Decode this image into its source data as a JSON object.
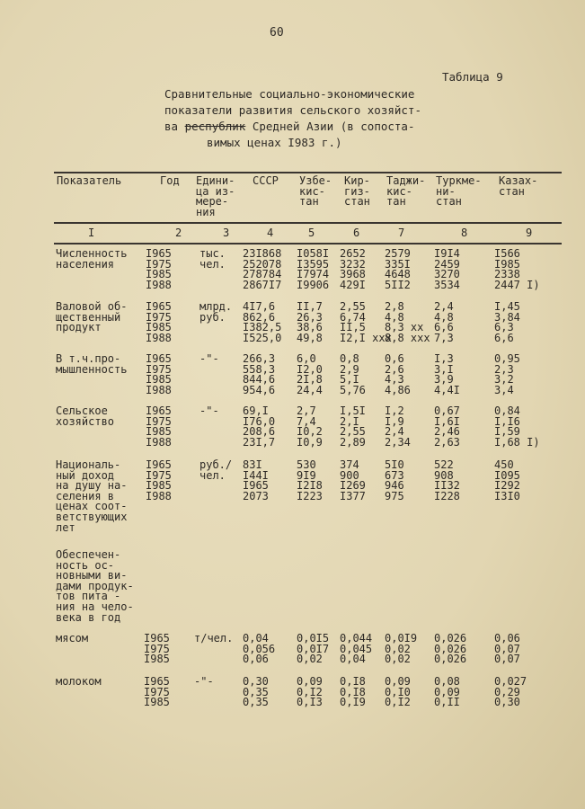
{
  "page_number": "60",
  "table_label": "Таблица 9",
  "title_lines": [
    "Сравнительные социально-экономические",
    "показатели развития сельского хозяйст-",
    "ва",
    "республик",
    "Средней Азии (в сопоста-",
    "вимых ценах I983 г.)"
  ],
  "headers": [
    "Показатель",
    "Год",
    "Едини-\nца из-\nмере-\nния",
    "СССР",
    "Узбе-\nкис-\nтан",
    "Кир-\nгиз-\nстан",
    "Таджи-\nкис-\nтан",
    "Туркме-\nни-\nстан",
    "Казах-\nстан"
  ],
  "column_numbers": [
    "I",
    "2",
    "3",
    "4",
    "5",
    "6",
    "7",
    "8",
    "9"
  ],
  "rows": [
    {
      "indicator": "Численность\nнаселения",
      "years": [
        "I965",
        "I975",
        "I985",
        "I988"
      ],
      "unit": "тыс.\nчел.",
      "values": [
        [
          "23I868",
          "252078",
          "278784",
          "2867I7"
        ],
        [
          "I058I",
          "I3595",
          "I7974",
          "I9906"
        ],
        [
          "2652",
          "3232",
          "3968",
          "429I"
        ],
        [
          "2579",
          "335I",
          "4648",
          "5II2"
        ],
        [
          "I9I4",
          "2459",
          "3270",
          "3534"
        ],
        [
          "I566",
          "I985",
          "2338",
          "2447 I)"
        ]
      ]
    },
    {
      "indicator": "Валовой об-\nщественный\nпродукт",
      "years": [
        "I965",
        "I975",
        "I985",
        "I988"
      ],
      "unit": "млрд.\nруб.",
      "values": [
        [
          "4I7,6",
          "862,6",
          "I382,5",
          "I525,0"
        ],
        [
          "II,7",
          "26,3",
          "38,6",
          "49,8"
        ],
        [
          "2,55",
          "6,74",
          "II,5",
          "I2,I xxx"
        ],
        [
          "2,8",
          "4,8",
          "8,3 xx",
          "8,8 xxx"
        ],
        [
          "2,4",
          "4,8",
          "6,6",
          "7,3"
        ],
        [
          "I,45",
          "3,84",
          "6,3",
          "6,6"
        ]
      ]
    },
    {
      "indicator": "В т.ч.про-\nмышленность",
      "years": [
        "I965",
        "I975",
        "I985",
        "I988"
      ],
      "unit": "-\"-",
      "values": [
        [
          "266,3",
          "558,3",
          "844,6",
          "954,6"
        ],
        [
          "6,0",
          "I2,0",
          "2I,8",
          "24,4"
        ],
        [
          "0,8",
          "2,9",
          "5,I",
          "5,76"
        ],
        [
          "0,6",
          "2,6",
          "4,3",
          "4,86"
        ],
        [
          "I,3",
          "3,I",
          "3,9",
          "4,4I"
        ],
        [
          "0,95",
          "2,3",
          "3,2",
          "3,4"
        ]
      ]
    },
    {
      "indicator": "Сельское\nхозяйство",
      "years": [
        "I965",
        "I975",
        "I985",
        "I988"
      ],
      "unit": "-\"-",
      "values": [
        [
          "69,I",
          "I76,0",
          "208,6",
          "23I,7"
        ],
        [
          "2,7",
          "7,4",
          "I0,2",
          "I0,9"
        ],
        [
          "I,5I",
          "2,I",
          "2,55",
          "2,89"
        ],
        [
          "I,2",
          "I,9",
          "2,4",
          "2,34"
        ],
        [
          "0,67",
          "I,6I",
          "2,46",
          "2,63"
        ],
        [
          "0,84",
          "I,I6",
          "I,59",
          "I,68 I)"
        ]
      ]
    },
    {
      "indicator": "Националь-\nный доход\nна душу на-\nселения в\nценах соот-\nветствующих\nлет",
      "years": [
        "I965",
        "I975",
        "I985",
        "I988"
      ],
      "unit": "руб./\nчел.",
      "values": [
        [
          "83I",
          "I44I",
          "I965",
          "2073"
        ],
        [
          "530",
          "9I9",
          "I2I8",
          "I223"
        ],
        [
          "374",
          "900",
          "I269",
          "I377"
        ],
        [
          "5I0",
          "673",
          "946",
          "975"
        ],
        [
          "522",
          "908",
          "II32",
          "I228"
        ],
        [
          "450",
          "I095",
          "I292",
          "I3I0"
        ]
      ]
    },
    {
      "indicator": "Обеспечен-\nность ос-\nновными ви-\nдами продук-\nтов пита -\nния на чело-\nвека в год",
      "years": [],
      "unit": "",
      "values": []
    },
    {
      "indicator": "мясом",
      "years": [
        "I965",
        "I975",
        "I985"
      ],
      "unit": "т/чел.",
      "values": [
        [
          "0,04",
          "0,056",
          "0,06"
        ],
        [
          "0,0I5",
          "0,0I7",
          "0,02"
        ],
        [
          "0,044",
          "0,045",
          "0,04"
        ],
        [
          "0,0I9",
          "0,02",
          "0,02"
        ],
        [
          "0,026",
          "0,026",
          "0,026"
        ],
        [
          "0,06",
          "0,07",
          "0,07"
        ]
      ]
    },
    {
      "indicator": "молоком",
      "years": [
        "I965",
        "I975",
        "I985"
      ],
      "unit": "-\"-",
      "values": [
        [
          "0,30",
          "0,35",
          "0,35"
        ],
        [
          "0,09",
          "0,I2",
          "0,I3"
        ],
        [
          "0,I8",
          "0,I8",
          "0,I9"
        ],
        [
          "0,09",
          "0,I0",
          "0,I2"
        ],
        [
          "0,08",
          "0,09",
          "0,II"
        ],
        [
          "0,027",
          "0,29",
          "0,30"
        ]
      ]
    }
  ]
}
